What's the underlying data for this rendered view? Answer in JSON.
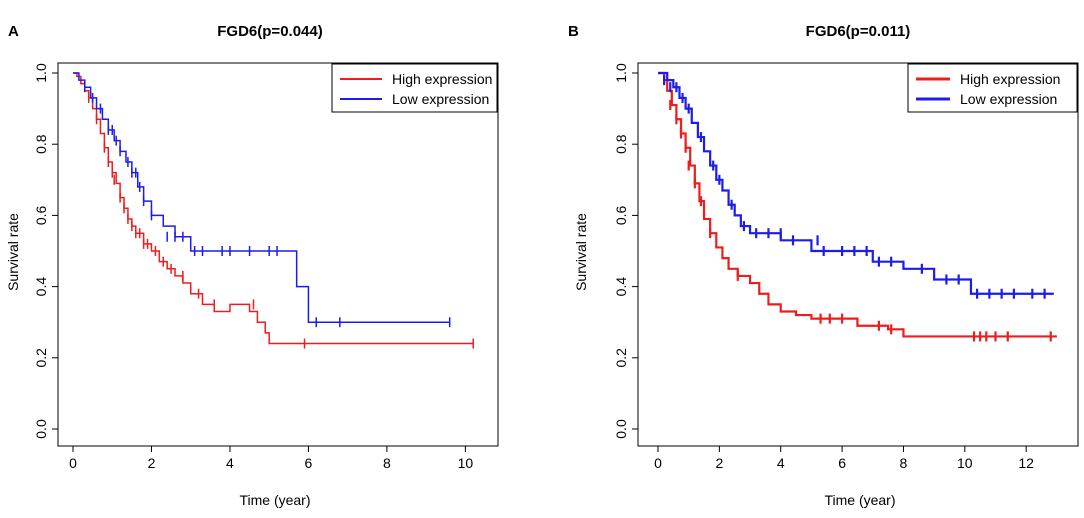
{
  "chart_data": [
    {
      "type": "line",
      "panel": "A",
      "title": "FGD6(p=0.044)",
      "xlabel": "Time (year)",
      "ylabel": "Survival rate",
      "xlim": [
        0,
        10.5
      ],
      "ylim": [
        0,
        1
      ],
      "xticks": [
        0,
        2,
        4,
        6,
        8,
        10
      ],
      "xtick_labels": [
        "0",
        "2",
        "4",
        "6",
        "8",
        "10"
      ],
      "yticks": [
        0,
        0.2,
        0.4,
        0.6,
        0.8,
        1
      ],
      "ytick_labels": [
        "0.0",
        "0.2",
        "0.4",
        "0.6",
        "0.8",
        "1.0"
      ],
      "grid": false,
      "legend_position": "top-right",
      "series": [
        {
          "name": "High expression",
          "color": "#ee1c1c",
          "line_width": 1.5,
          "step_x": [
            0,
            0.1,
            0.2,
            0.3,
            0.4,
            0.5,
            0.6,
            0.7,
            0.8,
            0.9,
            1.0,
            1.1,
            1.2,
            1.3,
            1.4,
            1.5,
            1.6,
            1.8,
            2.0,
            2.2,
            2.4,
            2.6,
            2.8,
            3.0,
            3.3,
            3.6,
            4.0,
            4.5,
            4.7,
            4.9,
            5.0,
            10.2
          ],
          "step_y": [
            1.0,
            0.99,
            0.97,
            0.95,
            0.93,
            0.9,
            0.87,
            0.83,
            0.79,
            0.75,
            0.72,
            0.69,
            0.65,
            0.62,
            0.59,
            0.57,
            0.55,
            0.52,
            0.5,
            0.47,
            0.45,
            0.43,
            0.41,
            0.38,
            0.35,
            0.33,
            0.35,
            0.33,
            0.3,
            0.27,
            0.24,
            0.24
          ],
          "censor_x": [
            0.4,
            0.6,
            0.8,
            0.9,
            1.0,
            1.05,
            1.2,
            1.3,
            1.4,
            1.5,
            1.6,
            1.7,
            1.8,
            1.9,
            2.1,
            2.3,
            2.5,
            2.8,
            3.2,
            3.6,
            4.6,
            5.9,
            10.2
          ],
          "censor_y": [
            0.93,
            0.87,
            0.79,
            0.75,
            0.72,
            0.7,
            0.65,
            0.62,
            0.59,
            0.57,
            0.55,
            0.55,
            0.52,
            0.52,
            0.5,
            0.47,
            0.45,
            0.43,
            0.38,
            0.35,
            0.35,
            0.24,
            0.24
          ]
        },
        {
          "name": "Low expression",
          "color": "#1c1cee",
          "line_width": 1.5,
          "step_x": [
            0,
            0.15,
            0.3,
            0.45,
            0.6,
            0.75,
            0.9,
            1.05,
            1.2,
            1.35,
            1.5,
            1.65,
            1.8,
            2.0,
            2.3,
            2.6,
            3.0,
            5.7,
            6.0,
            9.6
          ],
          "step_y": [
            1.0,
            0.98,
            0.96,
            0.93,
            0.9,
            0.87,
            0.84,
            0.81,
            0.78,
            0.75,
            0.72,
            0.68,
            0.64,
            0.6,
            0.57,
            0.54,
            0.5,
            0.4,
            0.3,
            0.3
          ],
          "censor_x": [
            0.3,
            0.5,
            0.7,
            0.9,
            1.0,
            1.1,
            1.2,
            1.4,
            1.5,
            1.6,
            1.7,
            1.8,
            2.0,
            2.4,
            2.6,
            2.8,
            3.1,
            3.3,
            3.8,
            4.0,
            4.5,
            5.0,
            5.2,
            6.2,
            6.8,
            9.6
          ],
          "censor_y": [
            0.96,
            0.93,
            0.9,
            0.84,
            0.84,
            0.81,
            0.78,
            0.75,
            0.72,
            0.72,
            0.68,
            0.64,
            0.6,
            0.54,
            0.54,
            0.54,
            0.5,
            0.5,
            0.5,
            0.5,
            0.5,
            0.5,
            0.5,
            0.3,
            0.3,
            0.3
          ]
        }
      ]
    },
    {
      "type": "line",
      "panel": "B",
      "title": "FGD6(p=0.011)",
      "xlabel": "Time (year)",
      "ylabel": "Survival rate",
      "xlim": [
        0,
        13.2
      ],
      "ylim": [
        0,
        1
      ],
      "xticks": [
        0,
        2,
        4,
        6,
        8,
        10,
        12
      ],
      "xtick_labels": [
        "0",
        "2",
        "4",
        "6",
        "8",
        "10",
        "12"
      ],
      "yticks": [
        0,
        0.2,
        0.4,
        0.6,
        0.8,
        1
      ],
      "ytick_labels": [
        "0.0",
        "0.2",
        "0.4",
        "0.6",
        "0.8",
        "1.0"
      ],
      "grid": false,
      "legend_position": "top-right",
      "series": [
        {
          "name": "High expression",
          "color": "#ee1c1c",
          "line_width": 2.2,
          "step_x": [
            0,
            0.2,
            0.3,
            0.45,
            0.6,
            0.75,
            0.9,
            1.05,
            1.2,
            1.35,
            1.5,
            1.7,
            1.9,
            2.1,
            2.3,
            2.6,
            3.0,
            3.3,
            3.6,
            4.0,
            4.5,
            5.0,
            6.5,
            7.5,
            8.0,
            13.0
          ],
          "step_y": [
            1.0,
            0.98,
            0.95,
            0.91,
            0.87,
            0.83,
            0.79,
            0.74,
            0.69,
            0.64,
            0.59,
            0.55,
            0.51,
            0.48,
            0.45,
            0.43,
            0.41,
            0.38,
            0.35,
            0.33,
            0.32,
            0.31,
            0.29,
            0.28,
            0.26,
            0.26
          ],
          "censor_x": [
            0.4,
            0.6,
            0.75,
            0.9,
            1.0,
            1.2,
            1.4,
            1.7,
            2.6,
            5.3,
            5.6,
            6.0,
            7.2,
            7.6,
            10.3,
            10.5,
            10.7,
            11.0,
            11.4,
            12.8
          ],
          "censor_y": [
            0.91,
            0.87,
            0.83,
            0.79,
            0.74,
            0.69,
            0.64,
            0.55,
            0.43,
            0.31,
            0.31,
            0.31,
            0.29,
            0.28,
            0.26,
            0.26,
            0.26,
            0.26,
            0.26,
            0.26
          ]
        },
        {
          "name": "Low expression",
          "color": "#1c1cee",
          "line_width": 2.2,
          "step_x": [
            0,
            0.3,
            0.5,
            0.7,
            0.9,
            1.1,
            1.3,
            1.5,
            1.7,
            1.9,
            2.1,
            2.3,
            2.5,
            2.7,
            3.0,
            4.0,
            5.0,
            7.0,
            8.0,
            9.0,
            10.2,
            12.9
          ],
          "step_y": [
            1.0,
            0.98,
            0.96,
            0.93,
            0.9,
            0.86,
            0.82,
            0.78,
            0.74,
            0.7,
            0.67,
            0.63,
            0.6,
            0.57,
            0.55,
            0.53,
            0.5,
            0.47,
            0.45,
            0.42,
            0.38,
            0.38
          ],
          "censor_x": [
            0.2,
            0.4,
            0.6,
            0.8,
            1.0,
            1.4,
            1.8,
            2.0,
            2.4,
            2.8,
            3.2,
            3.6,
            4.0,
            4.4,
            5.2,
            5.4,
            6.0,
            6.4,
            6.8,
            7.2,
            7.6,
            8.6,
            9.4,
            9.8,
            10.4,
            10.8,
            11.2,
            11.6,
            12.2,
            12.6
          ],
          "censor_y": [
            0.98,
            0.96,
            0.96,
            0.93,
            0.9,
            0.82,
            0.74,
            0.7,
            0.63,
            0.57,
            0.55,
            0.55,
            0.55,
            0.53,
            0.53,
            0.5,
            0.5,
            0.5,
            0.5,
            0.47,
            0.47,
            0.45,
            0.42,
            0.42,
            0.38,
            0.38,
            0.38,
            0.38,
            0.38,
            0.38
          ]
        }
      ]
    }
  ]
}
